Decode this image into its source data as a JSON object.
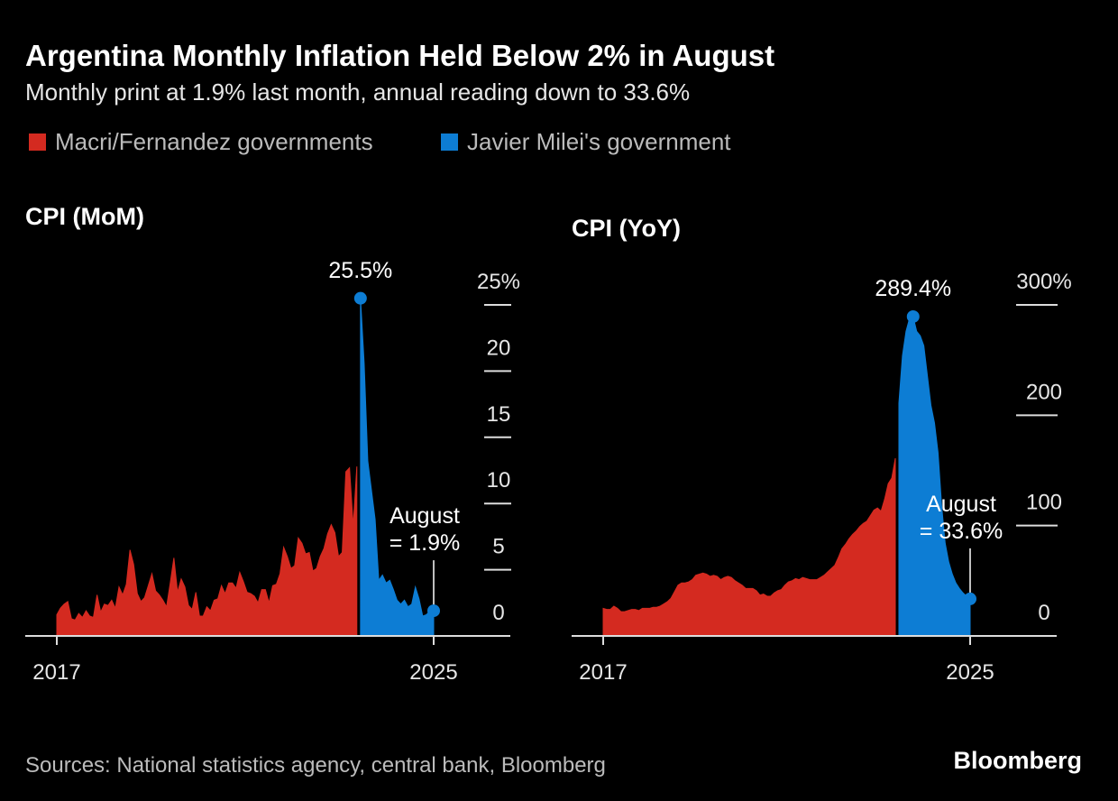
{
  "title": "Argentina Monthly Inflation Held Below 2% in August",
  "subtitle": "Monthly print at 1.9% last month, annual reading down to 33.6%",
  "legend": [
    {
      "label": "Macri/Fernandez governments",
      "color": "#d42a20"
    },
    {
      "label": "Javier Milei's government",
      "color": "#0d7dd4"
    }
  ],
  "source": "Sources: National statistics agency, central bank, Bloomberg",
  "brand": "Bloomberg",
  "chart_data": [
    {
      "type": "area",
      "title": "CPI (MoM)",
      "categories": [
        "2017",
        null,
        null,
        null,
        null,
        null,
        null,
        null,
        null,
        null,
        null,
        null,
        null,
        null,
        null,
        null,
        null,
        null,
        null,
        null,
        null,
        null,
        null,
        null,
        null,
        null,
        null,
        null,
        null,
        null,
        null,
        null,
        null,
        null,
        null,
        null,
        null,
        null,
        null,
        null,
        null,
        null,
        null,
        null,
        null,
        null,
        null,
        null,
        null,
        null,
        null,
        null,
        null,
        null,
        null,
        null,
        null,
        null,
        null,
        null,
        null,
        null,
        null,
        null,
        null,
        null,
        null,
        null,
        null,
        null,
        null,
        null,
        null,
        null,
        null,
        null,
        null,
        null,
        null,
        null,
        null,
        null,
        null,
        null,
        null,
        null,
        null,
        null,
        null,
        null,
        null,
        null,
        null,
        null,
        null,
        null,
        null,
        null,
        null,
        null,
        null,
        null,
        null,
        "2025"
      ],
      "series": [
        {
          "color": "#d42a20",
          "values": [
            1.6,
            2.1,
            2.4,
            2.6,
            1.3,
            1.2,
            1.7,
            1.4,
            1.9,
            1.5,
            1.4,
            3.1,
            1.8,
            2.4,
            2.3,
            2.7,
            2.1,
            3.7,
            3.1,
            3.9,
            6.5,
            5.4,
            3.2,
            2.6,
            2.9,
            3.8,
            4.7,
            3.4,
            3.1,
            2.7,
            2.2,
            4.0,
            5.9,
            3.3,
            4.3,
            3.7,
            2.3,
            2.0,
            3.3,
            1.5,
            1.5,
            2.2,
            1.9,
            2.7,
            2.8,
            3.8,
            3.2,
            4.0,
            4.0,
            3.6,
            4.8,
            4.1,
            3.3,
            3.2,
            3.0,
            2.5,
            3.5,
            3.5,
            2.5,
            3.8,
            3.9,
            4.7,
            6.7,
            6.0,
            5.1,
            5.3,
            7.4,
            7.0,
            6.2,
            6.3,
            4.9,
            5.1,
            6.0,
            6.6,
            7.7,
            8.4,
            7.8,
            6.0,
            6.3,
            12.4,
            12.7,
            8.3,
            12.8,
            null,
            null,
            null,
            null,
            null,
            null,
            null,
            null,
            null,
            null,
            null,
            null,
            null,
            null,
            null,
            null,
            null,
            null,
            null,
            null,
            null
          ]
        },
        {
          "color": "#0d7dd4",
          "values": [
            null,
            null,
            null,
            null,
            null,
            null,
            null,
            null,
            null,
            null,
            null,
            null,
            null,
            null,
            null,
            null,
            null,
            null,
            null,
            null,
            null,
            null,
            null,
            null,
            null,
            null,
            null,
            null,
            null,
            null,
            null,
            null,
            null,
            null,
            null,
            null,
            null,
            null,
            null,
            null,
            null,
            null,
            null,
            null,
            null,
            null,
            null,
            null,
            null,
            null,
            null,
            null,
            null,
            null,
            null,
            null,
            null,
            null,
            null,
            null,
            null,
            null,
            null,
            null,
            null,
            null,
            null,
            null,
            null,
            null,
            null,
            null,
            null,
            null,
            null,
            null,
            null,
            null,
            null,
            null,
            null,
            null,
            null,
            25.5,
            20.6,
            13.2,
            11.0,
            8.8,
            4.2,
            4.6,
            4.0,
            4.2,
            3.5,
            2.7,
            2.4,
            2.7,
            2.2,
            2.4,
            3.7,
            2.8,
            1.5,
            1.6,
            1.9,
            1.9
          ],
          "value_labels": [
            null,
            null,
            null,
            null,
            null,
            null,
            null,
            null,
            null,
            null,
            null,
            null,
            null,
            null,
            null,
            null,
            null,
            null,
            null,
            null,
            null,
            null,
            null,
            null,
            null,
            null,
            null,
            null,
            null,
            null,
            null,
            null,
            null,
            null,
            null,
            null,
            null,
            null,
            null,
            null,
            null,
            null,
            null,
            null,
            null,
            null,
            null,
            null,
            null,
            null,
            null,
            null,
            null,
            null,
            null,
            null,
            null,
            null,
            null,
            null,
            null,
            null,
            null,
            null,
            null,
            null,
            null,
            null,
            null,
            null,
            null,
            null,
            null,
            null,
            null,
            null,
            null,
            null,
            null,
            null,
            null,
            null,
            null,
            "25.5%",
            null,
            null,
            null,
            null,
            null,
            null,
            null,
            null,
            null,
            null,
            null,
            null,
            null,
            null,
            null,
            null,
            null,
            null,
            null,
            "August\n= 1.9%"
          ]
        }
      ],
      "ylim": [
        0,
        25
      ],
      "yticks": [
        0,
        5,
        10,
        15,
        20,
        {
          "value": 25,
          "label": "25%"
        }
      ]
    },
    {
      "type": "area",
      "title": "CPI (YoY)",
      "categories": [
        "2017",
        null,
        null,
        null,
        null,
        null,
        null,
        null,
        null,
        null,
        null,
        null,
        null,
        null,
        null,
        null,
        null,
        null,
        null,
        null,
        null,
        null,
        null,
        null,
        null,
        null,
        null,
        null,
        null,
        null,
        null,
        null,
        null,
        null,
        null,
        null,
        null,
        null,
        null,
        null,
        null,
        null,
        null,
        null,
        null,
        null,
        null,
        null,
        null,
        null,
        null,
        null,
        null,
        null,
        null,
        null,
        null,
        null,
        null,
        null,
        null,
        null,
        null,
        null,
        null,
        null,
        null,
        null,
        null,
        null,
        null,
        null,
        null,
        null,
        null,
        null,
        null,
        null,
        null,
        null,
        null,
        null,
        null,
        null,
        null,
        null,
        null,
        null,
        null,
        null,
        null,
        null,
        null,
        null,
        null,
        null,
        null,
        null,
        null,
        null,
        null,
        null,
        null,
        "2025"
      ],
      "series": [
        {
          "color": "#d42a20",
          "values": [
            25,
            24,
            24,
            27,
            25,
            22,
            22,
            23,
            24,
            24,
            23,
            25,
            25,
            25,
            26,
            26,
            27,
            29,
            31,
            34,
            40,
            46,
            48,
            48,
            49,
            51,
            55,
            56,
            57,
            56,
            54,
            55,
            54,
            51,
            53,
            54,
            53,
            50,
            48,
            46,
            43,
            43,
            43,
            41,
            37,
            38,
            36,
            36,
            39,
            41,
            42,
            46,
            49,
            50,
            52,
            51,
            53,
            52,
            51,
            51,
            51,
            53,
            55,
            58,
            61,
            64,
            71,
            79,
            83,
            88,
            92,
            95,
            99,
            102,
            104,
            109,
            114,
            116,
            113,
            124,
            138,
            143,
            161,
            null,
            null,
            null,
            null,
            null,
            null,
            null,
            null,
            null,
            null,
            null,
            null,
            null,
            null,
            null,
            null,
            null,
            null,
            null,
            null,
            null
          ]
        },
        {
          "color": "#0d7dd4",
          "values": [
            null,
            null,
            null,
            null,
            null,
            null,
            null,
            null,
            null,
            null,
            null,
            null,
            null,
            null,
            null,
            null,
            null,
            null,
            null,
            null,
            null,
            null,
            null,
            null,
            null,
            null,
            null,
            null,
            null,
            null,
            null,
            null,
            null,
            null,
            null,
            null,
            null,
            null,
            null,
            null,
            null,
            null,
            null,
            null,
            null,
            null,
            null,
            null,
            null,
            null,
            null,
            null,
            null,
            null,
            null,
            null,
            null,
            null,
            null,
            null,
            null,
            null,
            null,
            null,
            null,
            null,
            null,
            null,
            null,
            null,
            null,
            null,
            null,
            null,
            null,
            null,
            null,
            null,
            null,
            null,
            null,
            null,
            null,
            211,
            254,
            276,
            288,
            289.4,
            276,
            272,
            263,
            236,
            209,
            193,
            166,
            118,
            84,
            67,
            56,
            48,
            43,
            39,
            36,
            33.6
          ],
          "value_labels": [
            null,
            null,
            null,
            null,
            null,
            null,
            null,
            null,
            null,
            null,
            null,
            null,
            null,
            null,
            null,
            null,
            null,
            null,
            null,
            null,
            null,
            null,
            null,
            null,
            null,
            null,
            null,
            null,
            null,
            null,
            null,
            null,
            null,
            null,
            null,
            null,
            null,
            null,
            null,
            null,
            null,
            null,
            null,
            null,
            null,
            null,
            null,
            null,
            null,
            null,
            null,
            null,
            null,
            null,
            null,
            null,
            null,
            null,
            null,
            null,
            null,
            null,
            null,
            null,
            null,
            null,
            null,
            null,
            null,
            null,
            null,
            null,
            null,
            null,
            null,
            null,
            null,
            null,
            null,
            null,
            null,
            null,
            null,
            null,
            null,
            null,
            null,
            "289.4%",
            null,
            null,
            null,
            null,
            null,
            null,
            null,
            null,
            null,
            null,
            null,
            null,
            null,
            null,
            null,
            "August\n= 33.6%"
          ]
        }
      ],
      "ylim": [
        0,
        300
      ],
      "yticks": [
        0,
        100,
        200,
        {
          "value": 300,
          "label": "300%"
        }
      ]
    }
  ]
}
